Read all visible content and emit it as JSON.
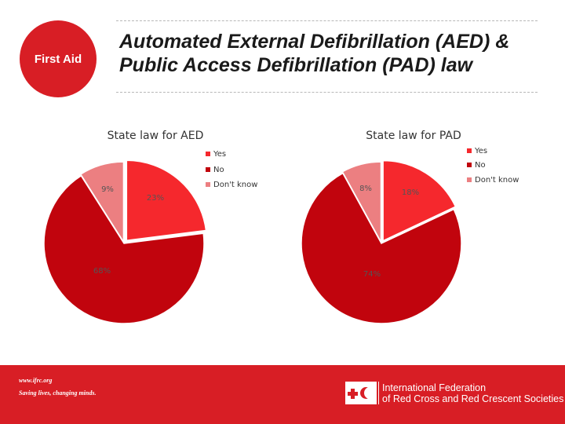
{
  "badge": {
    "label": "First Aid"
  },
  "header": {
    "title_line1": "Automated External Defibrillation (AED) &",
    "title_line2": "Public Access Defibrillation (PAD) law"
  },
  "colors": {
    "yes": "#f5282d",
    "no": "#c1040d",
    "dont_know": "#ec7f81",
    "brand_red": "#d81e25"
  },
  "chart_data": [
    {
      "type": "pie",
      "title": "State law for AED",
      "categories": [
        "Yes",
        "No",
        "Don't know"
      ],
      "values": [
        23,
        68,
        9
      ],
      "labels": [
        "23%",
        "68%",
        "9%"
      ],
      "legend": [
        "Yes",
        "No",
        "Don't know"
      ],
      "legend_position": "top-right"
    },
    {
      "type": "pie",
      "title": "State law for PAD",
      "categories": [
        "Yes",
        "No",
        "Don't know"
      ],
      "values": [
        18,
        74,
        8
      ],
      "labels": [
        "18%",
        "74%",
        "8%"
      ],
      "legend": [
        "Yes",
        "No",
        "Don't know"
      ],
      "legend_position": "top-right"
    }
  ],
  "footer": {
    "url": "www.ifrc.org",
    "tagline": "Saving lives, changing minds.",
    "org_line1": "International Federation",
    "org_line2": "of Red Cross and Red Crescent Societies"
  }
}
